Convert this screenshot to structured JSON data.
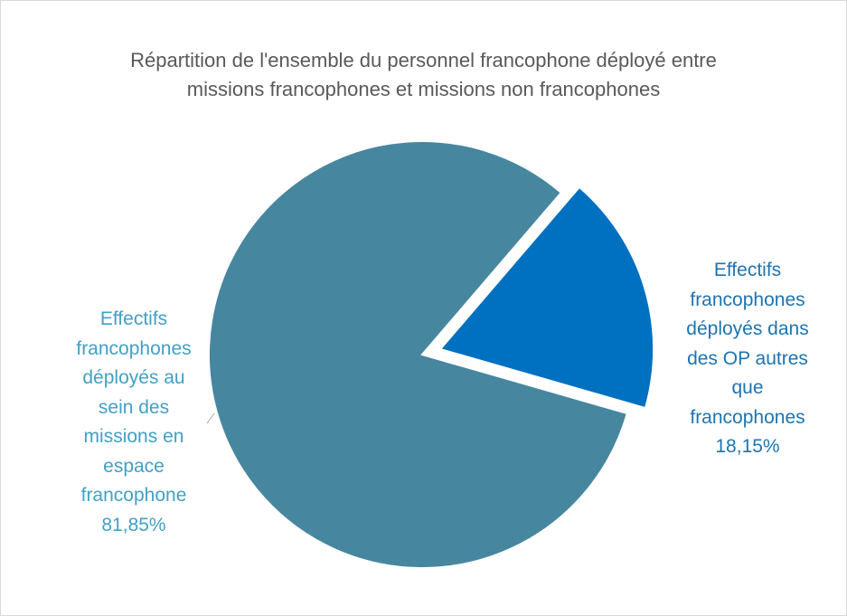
{
  "chart_data": {
    "type": "pie",
    "title": "Répartition de l'ensemble du personnel francophone déployé entre missions francophones et missions non francophones",
    "categories": [
      "Effectifs francophones déployés au sein des missions en espace francophone",
      "Effectifs francophones déployés dans des OP autres que francophones"
    ],
    "values": [
      81.85,
      18.15
    ],
    "value_labels": [
      "81,85%",
      "18,15%"
    ],
    "colors": [
      "#46879f",
      "#0070c0"
    ]
  }
}
